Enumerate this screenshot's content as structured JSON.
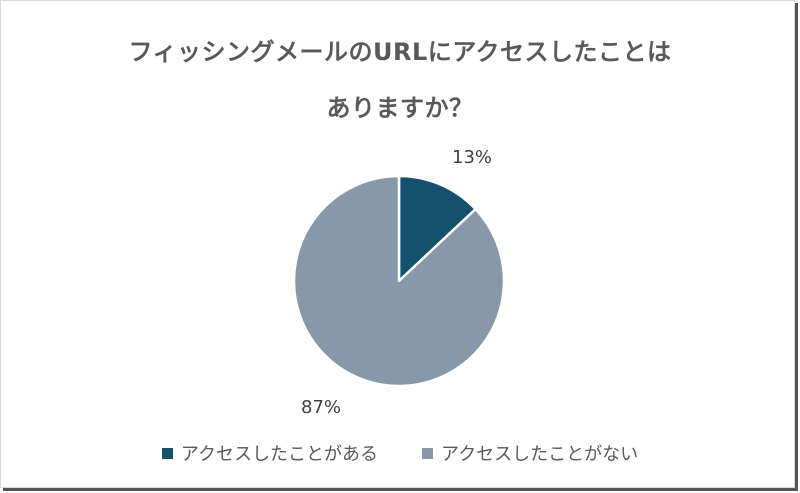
{
  "chart_data": {
    "type": "pie",
    "title": "フィッシングメールのURLにアクセスしたことはありますか？",
    "title_lines": [
      "フィッシングメールのURLにアクセスしたことは",
      "ありますか？"
    ],
    "categories": [
      "アクセスしたことがある",
      "アクセスしたことがない"
    ],
    "values": [
      13,
      87
    ],
    "unit": "%",
    "data_labels": [
      "13%",
      "87%"
    ],
    "colors": [
      "#15506e",
      "#8799a8"
    ],
    "legend_position": "bottom",
    "start_angle_deg": 0,
    "direction": "clockwise"
  },
  "legend": {
    "items": [
      {
        "label": "アクセスしたことがある",
        "color": "#15506e"
      },
      {
        "label": "アクセスしたことがない",
        "color": "#8799a8"
      }
    ]
  }
}
